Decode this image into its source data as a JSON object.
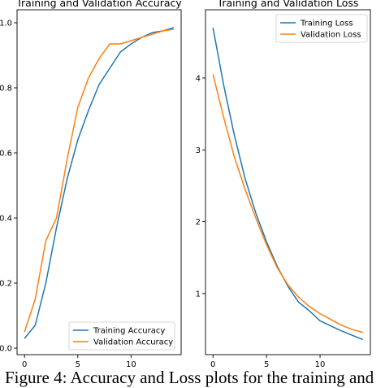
{
  "caption": "Figure 4: Accuracy and Loss plots for the training and",
  "colors": {
    "training": "#1f77b4",
    "validation": "#ff7f0e"
  },
  "chart_data": [
    {
      "type": "line",
      "title": "Training and Validation Accuracy",
      "xlabel": "",
      "ylabel": "",
      "x": [
        0,
        1,
        2,
        3,
        4,
        5,
        6,
        7,
        8,
        9,
        10,
        11,
        12,
        13,
        14
      ],
      "series": [
        {
          "name": "Training Accuracy",
          "values": [
            0.03,
            0.07,
            0.2,
            0.37,
            0.52,
            0.64,
            0.73,
            0.81,
            0.86,
            0.91,
            0.935,
            0.955,
            0.97,
            0.975,
            0.985
          ]
        },
        {
          "name": "Validation Accuracy",
          "values": [
            0.05,
            0.15,
            0.33,
            0.4,
            0.58,
            0.74,
            0.83,
            0.89,
            0.935,
            0.935,
            0.945,
            0.955,
            0.965,
            0.975,
            0.98
          ]
        }
      ],
      "xticks": [
        "0",
        "5",
        "10"
      ],
      "yticks": [
        "0.0",
        "0.2",
        "0.4",
        "0.6",
        "0.8",
        "1.0"
      ],
      "xlim": [
        -0.7,
        14.7
      ],
      "ylim": [
        -0.02,
        1.04
      ],
      "legend": "lower-right",
      "grid": false
    },
    {
      "type": "line",
      "title": "Training and Validation Loss",
      "xlabel": "",
      "ylabel": "",
      "x": [
        0,
        1,
        2,
        3,
        4,
        5,
        6,
        7,
        8,
        9,
        10,
        11,
        12,
        13,
        14
      ],
      "series": [
        {
          "name": "Training Loss",
          "values": [
            4.7,
            3.9,
            3.2,
            2.6,
            2.12,
            1.72,
            1.38,
            1.1,
            0.88,
            0.76,
            0.62,
            0.55,
            0.48,
            0.42,
            0.36
          ]
        },
        {
          "name": "Validation Loss",
          "values": [
            4.05,
            3.45,
            2.9,
            2.45,
            2.05,
            1.68,
            1.36,
            1.12,
            0.95,
            0.82,
            0.72,
            0.64,
            0.56,
            0.5,
            0.46
          ]
        }
      ],
      "xticks": [
        "0",
        "5",
        "10"
      ],
      "yticks": [
        "1",
        "2",
        "3",
        "4"
      ],
      "xlim": [
        -0.7,
        14.7
      ],
      "ylim": [
        0.15,
        4.95
      ],
      "legend": "upper-right",
      "grid": false
    }
  ]
}
